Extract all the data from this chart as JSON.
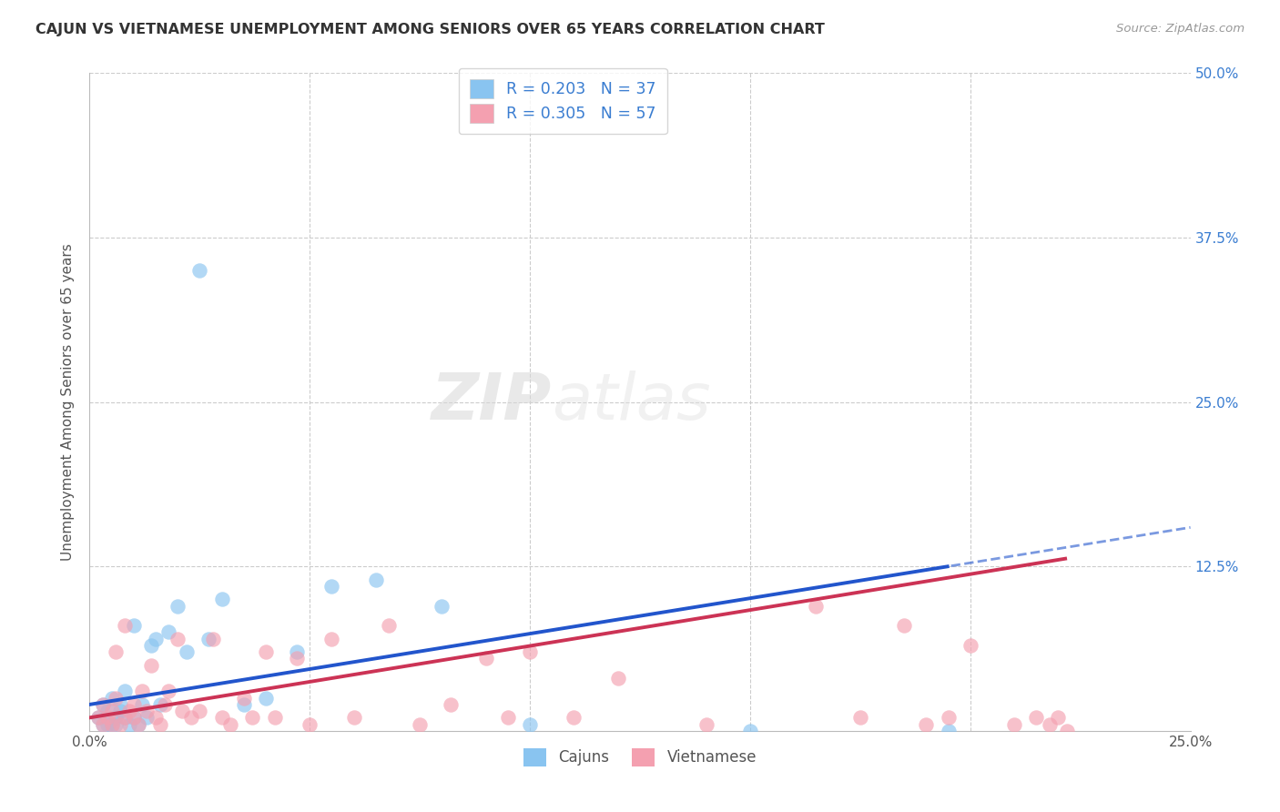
{
  "title": "CAJUN VS VIETNAMESE UNEMPLOYMENT AMONG SENIORS OVER 65 YEARS CORRELATION CHART",
  "source": "Source: ZipAtlas.com",
  "ylabel": "Unemployment Among Seniors over 65 years",
  "xlim": [
    0.0,
    0.25
  ],
  "ylim": [
    0.0,
    0.5
  ],
  "bg_color": "#ffffff",
  "cajun_color": "#89c4f0",
  "vietnamese_color": "#f4a0b0",
  "cajun_line_color": "#2255cc",
  "vietnamese_line_color": "#cc3355",
  "legend_cajun_label": "R = 0.203   N = 37",
  "legend_vietnamese_label": "R = 0.305   N = 57",
  "watermark_zip": "ZIP",
  "watermark_atlas": "atlas",
  "cajun_x": [
    0.002,
    0.003,
    0.003,
    0.004,
    0.004,
    0.005,
    0.005,
    0.006,
    0.006,
    0.007,
    0.007,
    0.008,
    0.008,
    0.009,
    0.01,
    0.01,
    0.011,
    0.012,
    0.013,
    0.014,
    0.015,
    0.016,
    0.018,
    0.02,
    0.022,
    0.025,
    0.027,
    0.03,
    0.035,
    0.04,
    0.047,
    0.055,
    0.065,
    0.08,
    0.1,
    0.15,
    0.195
  ],
  "cajun_y": [
    0.01,
    0.005,
    0.02,
    0.005,
    0.015,
    0.005,
    0.025,
    0.01,
    0.005,
    0.015,
    0.02,
    0.01,
    0.03,
    0.005,
    0.01,
    0.08,
    0.005,
    0.02,
    0.01,
    0.065,
    0.07,
    0.02,
    0.075,
    0.095,
    0.06,
    0.35,
    0.07,
    0.1,
    0.02,
    0.025,
    0.06,
    0.11,
    0.115,
    0.095,
    0.005,
    0.0,
    0.0
  ],
  "vietnamese_x": [
    0.002,
    0.003,
    0.003,
    0.004,
    0.005,
    0.005,
    0.006,
    0.006,
    0.007,
    0.008,
    0.008,
    0.009,
    0.01,
    0.01,
    0.011,
    0.012,
    0.013,
    0.014,
    0.015,
    0.016,
    0.017,
    0.018,
    0.02,
    0.021,
    0.023,
    0.025,
    0.028,
    0.03,
    0.032,
    0.035,
    0.037,
    0.04,
    0.042,
    0.047,
    0.05,
    0.055,
    0.06,
    0.068,
    0.075,
    0.082,
    0.09,
    0.095,
    0.1,
    0.11,
    0.12,
    0.14,
    0.165,
    0.175,
    0.185,
    0.19,
    0.195,
    0.2,
    0.21,
    0.215,
    0.218,
    0.22,
    0.222
  ],
  "vietnamese_y": [
    0.01,
    0.02,
    0.005,
    0.01,
    0.015,
    0.005,
    0.025,
    0.06,
    0.005,
    0.01,
    0.08,
    0.015,
    0.01,
    0.02,
    0.005,
    0.03,
    0.015,
    0.05,
    0.01,
    0.005,
    0.02,
    0.03,
    0.07,
    0.015,
    0.01,
    0.015,
    0.07,
    0.01,
    0.005,
    0.025,
    0.01,
    0.06,
    0.01,
    0.055,
    0.005,
    0.07,
    0.01,
    0.08,
    0.005,
    0.02,
    0.055,
    0.01,
    0.06,
    0.01,
    0.04,
    0.005,
    0.095,
    0.01,
    0.08,
    0.005,
    0.01,
    0.065,
    0.005,
    0.01,
    0.005,
    0.01,
    0.0
  ]
}
